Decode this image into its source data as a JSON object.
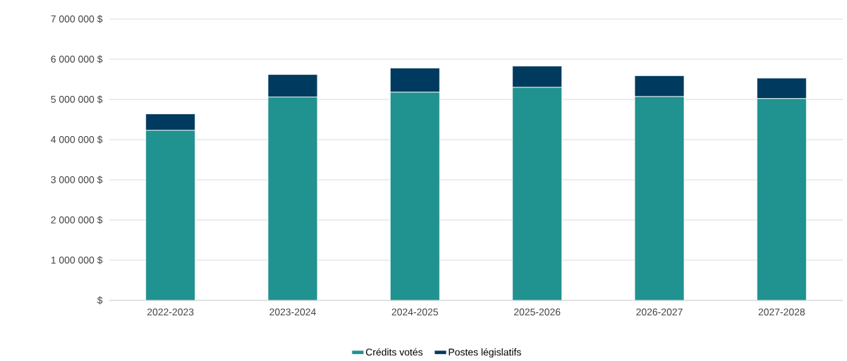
{
  "chart_data": {
    "type": "bar",
    "stacked": true,
    "categories": [
      "2022-2023",
      "2023-2024",
      "2024-2025",
      "2025-2026",
      "2026-2027",
      "2027-2028"
    ],
    "series": [
      {
        "name": "Crédits votés",
        "color": "#20928f",
        "values": [
          4230000,
          5060000,
          5180000,
          5300000,
          5070000,
          5020000
        ]
      },
      {
        "name": "Postes législatifs",
        "color": "#003a5f",
        "values": [
          410000,
          560000,
          600000,
          530000,
          520000,
          510000
        ]
      }
    ],
    "ylim": [
      0,
      7000000
    ],
    "yticks": [
      {
        "value": 0,
        "label": "$"
      },
      {
        "value": 1000000,
        "label": "1 000 000 $"
      },
      {
        "value": 2000000,
        "label": "2 000 000 $"
      },
      {
        "value": 3000000,
        "label": "3 000 000 $"
      },
      {
        "value": 4000000,
        "label": "4 000 000 $"
      },
      {
        "value": 5000000,
        "label": "5 000 000 $"
      },
      {
        "value": 6000000,
        "label": "6 000 000 $"
      },
      {
        "value": 7000000,
        "label": "7 000 000 $"
      }
    ],
    "grid": "y",
    "legend": "bottom"
  }
}
